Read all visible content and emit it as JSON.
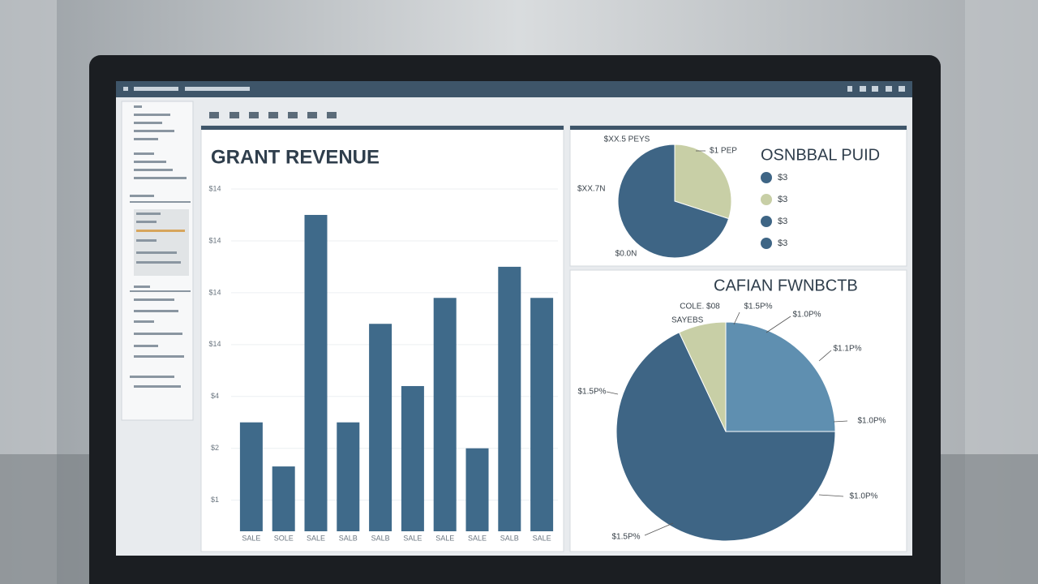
{
  "chart_data": [
    {
      "type": "bar",
      "title": "GRANT REVENUE",
      "categories": [
        "SALE",
        "SOLE",
        "SALE",
        "SALB",
        "SALB",
        "SALE",
        "SALE",
        "SALE",
        "SALB",
        "SALE"
      ],
      "values": [
        2.1,
        1.25,
        6.1,
        2.1,
        4.0,
        2.8,
        4.5,
        1.6,
        5.1,
        4.5
      ],
      "color": "#3f6a8a",
      "ylim": [
        0,
        6.6
      ],
      "yticks": [
        {
          "value": 0.6,
          "label": "$1"
        },
        {
          "value": 1.6,
          "label": "$2"
        },
        {
          "value": 2.6,
          "label": "$4"
        },
        {
          "value": 3.6,
          "label": "$14"
        },
        {
          "value": 4.6,
          "label": "$14"
        },
        {
          "value": 5.6,
          "label": "$14"
        },
        {
          "value": 6.6,
          "label": "$14"
        }
      ],
      "grid": true
    },
    {
      "type": "pie",
      "title": "OSNBBAL PUID",
      "values": [
        30,
        70
      ],
      "colors": [
        "#c8cfa6",
        "#3e6585"
      ],
      "annotations": [
        "$XX.5 PEYS",
        "$1 PEP",
        "$XX.7N",
        "$0.0N"
      ],
      "legend": [
        {
          "label": "$3",
          "color": "#3e6585"
        },
        {
          "label": "$3",
          "color": "#c8cfa6"
        },
        {
          "label": "$3",
          "color": "#3e6585"
        },
        {
          "label": "$3",
          "color": "#3e6585"
        }
      ]
    },
    {
      "type": "pie",
      "title": "CAFIAN FWNBCTB",
      "values": [
        25,
        68,
        7
      ],
      "colors": [
        "#5f8fb0",
        "#3e6585",
        "#c8cfa6"
      ],
      "annotations": [
        "COLE. $08",
        "SAYEBS",
        "$1.5P%",
        "$1.0P%",
        "$1.1P%",
        "$1.0P%",
        "$1.5P%",
        "$1.0P%",
        "$1.5P%"
      ]
    }
  ]
}
